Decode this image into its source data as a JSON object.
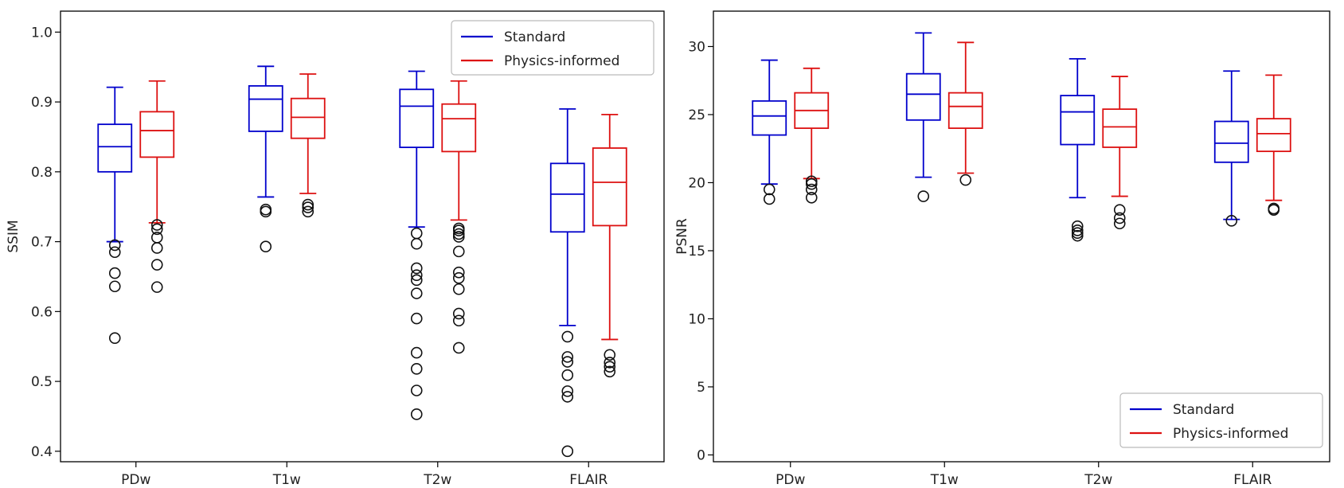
{
  "chart_data": [
    {
      "type": "boxplot",
      "ylabel": "SSIM",
      "xlabel": "",
      "ylim": [
        0.385,
        1.03
      ],
      "yticks": [
        "0.4",
        "0.5",
        "0.6",
        "0.7",
        "0.8",
        "0.9",
        "1.0"
      ],
      "ytick_values": [
        0.4,
        0.5,
        0.6,
        0.7,
        0.8,
        0.9,
        1.0
      ],
      "categories": [
        "PDw",
        "T1w",
        "T2w",
        "FLAIR"
      ],
      "legend": {
        "position": "upper-right",
        "entries": [
          "Standard",
          "Physics-informed"
        ]
      },
      "series": [
        {
          "name": "Standard",
          "color": "#0000cc",
          "boxes": [
            {
              "whislo": 0.7,
              "q1": 0.8,
              "med": 0.836,
              "q3": 0.868,
              "whishi": 0.921,
              "fliers": [
                0.695,
                0.685,
                0.655,
                0.636,
                0.562
              ]
            },
            {
              "whislo": 0.764,
              "q1": 0.858,
              "med": 0.904,
              "q3": 0.923,
              "whishi": 0.951,
              "fliers": [
                0.746,
                0.743,
                0.693
              ]
            },
            {
              "whislo": 0.721,
              "q1": 0.835,
              "med": 0.894,
              "q3": 0.918,
              "whishi": 0.944,
              "fliers": [
                0.712,
                0.697,
                0.662,
                0.652,
                0.645,
                0.626,
                0.59,
                0.541,
                0.518,
                0.487,
                0.453
              ]
            },
            {
              "whislo": 0.58,
              "q1": 0.714,
              "med": 0.768,
              "q3": 0.812,
              "whishi": 0.89,
              "fliers": [
                0.564,
                0.535,
                0.528,
                0.509,
                0.486,
                0.478,
                0.4
              ]
            }
          ]
        },
        {
          "name": "Physics-informed",
          "color": "#dd1111",
          "boxes": [
            {
              "whislo": 0.727,
              "q1": 0.821,
              "med": 0.859,
              "q3": 0.886,
              "whishi": 0.93,
              "fliers": [
                0.724,
                0.718,
                0.706,
                0.691,
                0.667,
                0.635
              ]
            },
            {
              "whislo": 0.769,
              "q1": 0.848,
              "med": 0.878,
              "q3": 0.905,
              "whishi": 0.94,
              "fliers": [
                0.753,
                0.749,
                0.743
              ]
            },
            {
              "whislo": 0.731,
              "q1": 0.829,
              "med": 0.876,
              "q3": 0.897,
              "whishi": 0.93,
              "fliers": [
                0.719,
                0.716,
                0.711,
                0.707,
                0.686,
                0.656,
                0.648,
                0.632,
                0.597,
                0.587,
                0.548
              ]
            },
            {
              "whislo": 0.56,
              "q1": 0.723,
              "med": 0.785,
              "q3": 0.834,
              "whishi": 0.882,
              "fliers": [
                0.538,
                0.527,
                0.521,
                0.514
              ]
            }
          ]
        }
      ]
    },
    {
      "type": "boxplot",
      "ylabel": "PSNR",
      "xlabel": "",
      "ylim": [
        -0.5,
        32.6
      ],
      "yticks": [
        "0",
        "5",
        "10",
        "15",
        "20",
        "25",
        "30"
      ],
      "ytick_values": [
        0,
        5,
        10,
        15,
        20,
        25,
        30
      ],
      "categories": [
        "PDw",
        "T1w",
        "T2w",
        "FLAIR"
      ],
      "legend": {
        "position": "lower-right",
        "entries": [
          "Standard",
          "Physics-informed"
        ]
      },
      "series": [
        {
          "name": "Standard",
          "color": "#0000cc",
          "boxes": [
            {
              "whislo": 19.9,
              "q1": 23.5,
              "med": 24.9,
              "q3": 26.0,
              "whishi": 29.0,
              "fliers": [
                19.5,
                18.8
              ]
            },
            {
              "whislo": 20.4,
              "q1": 24.6,
              "med": 26.5,
              "q3": 28.0,
              "whishi": 31.0,
              "fliers": [
                19.0
              ]
            },
            {
              "whislo": 18.9,
              "q1": 22.8,
              "med": 25.2,
              "q3": 26.4,
              "whishi": 29.1,
              "fliers": [
                16.8,
                16.5,
                16.3,
                16.1
              ]
            },
            {
              "whislo": 17.3,
              "q1": 21.5,
              "med": 22.9,
              "q3": 24.5,
              "whishi": 28.2,
              "fliers": [
                17.2
              ]
            }
          ]
        },
        {
          "name": "Physics-informed",
          "color": "#dd1111",
          "boxes": [
            {
              "whislo": 20.3,
              "q1": 24.0,
              "med": 25.3,
              "q3": 26.6,
              "whishi": 28.4,
              "fliers": [
                20.1,
                19.9,
                19.5,
                18.9
              ]
            },
            {
              "whislo": 20.7,
              "q1": 24.0,
              "med": 25.6,
              "q3": 26.6,
              "whishi": 30.3,
              "fliers": [
                20.2
              ]
            },
            {
              "whislo": 19.0,
              "q1": 22.6,
              "med": 24.1,
              "q3": 25.4,
              "whishi": 27.8,
              "fliers": [
                18.0,
                17.4,
                17.0
              ]
            },
            {
              "whislo": 18.7,
              "q1": 22.3,
              "med": 23.6,
              "q3": 24.7,
              "whishi": 27.9,
              "fliers": [
                18.1,
                18.0
              ]
            }
          ]
        }
      ]
    }
  ]
}
